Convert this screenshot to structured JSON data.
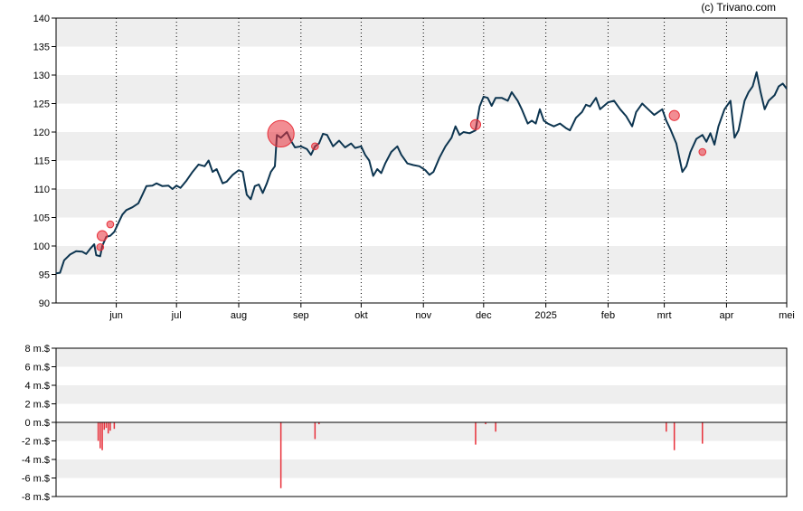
{
  "credit": "(c) Trivano.com",
  "chart_data": [
    {
      "type": "line",
      "ylim": [
        90,
        140
      ],
      "yticks": [
        90,
        95,
        100,
        105,
        110,
        115,
        120,
        125,
        130,
        135,
        140
      ],
      "xlim": [
        "2024-05-02",
        "2025-05-01"
      ],
      "month_ticks": [
        {
          "label": "jun",
          "date": "2024-06-01"
        },
        {
          "label": "jul",
          "date": "2024-07-01"
        },
        {
          "label": "aug",
          "date": "2024-08-01"
        },
        {
          "label": "sep",
          "date": "2024-09-01"
        },
        {
          "label": "okt",
          "date": "2024-10-01"
        },
        {
          "label": "nov",
          "date": "2024-11-01"
        },
        {
          "label": "dec",
          "date": "2024-12-01"
        },
        {
          "label": "2025",
          "date": "2025-01-01"
        },
        {
          "label": "feb",
          "date": "2025-02-01"
        },
        {
          "label": "mrt",
          "date": "2025-03-01"
        },
        {
          "label": "apr",
          "date": "2025-04-01"
        },
        {
          "label": "mei",
          "date": "2025-05-01"
        }
      ],
      "grid": "horizontal bands + dotted monthly verticals",
      "colors": {
        "line": "#0d3550",
        "band": "#eeeeee",
        "marker": "#e8303a"
      },
      "series": [
        {
          "points": [
            [
              "2024-05-02",
              95.2
            ],
            [
              "2024-05-04",
              95.3
            ],
            [
              "2024-05-06",
              97.5
            ],
            [
              "2024-05-09",
              98.5
            ],
            [
              "2024-05-12",
              99.1
            ],
            [
              "2024-05-15",
              99.0
            ],
            [
              "2024-05-17",
              98.6
            ],
            [
              "2024-05-19",
              99.5
            ],
            [
              "2024-05-21",
              100.3
            ],
            [
              "2024-05-22",
              98.4
            ],
            [
              "2024-05-24",
              98.2
            ],
            [
              "2024-05-25",
              100.0
            ],
            [
              "2024-05-27",
              101.6
            ],
            [
              "2024-05-29",
              101.8
            ],
            [
              "2024-05-31",
              102.5
            ],
            [
              "2024-06-02",
              104.0
            ],
            [
              "2024-06-04",
              105.5
            ],
            [
              "2024-06-06",
              106.3
            ],
            [
              "2024-06-09",
              106.8
            ],
            [
              "2024-06-12",
              107.5
            ],
            [
              "2024-06-14",
              109.0
            ],
            [
              "2024-06-16",
              110.5
            ],
            [
              "2024-06-19",
              110.6
            ],
            [
              "2024-06-21",
              111.0
            ],
            [
              "2024-06-24",
              110.5
            ],
            [
              "2024-06-27",
              110.6
            ],
            [
              "2024-06-29",
              110.0
            ],
            [
              "2024-07-01",
              110.6
            ],
            [
              "2024-07-03",
              110.2
            ],
            [
              "2024-07-06",
              111.5
            ],
            [
              "2024-07-09",
              113.0
            ],
            [
              "2024-07-12",
              114.3
            ],
            [
              "2024-07-15",
              114.0
            ],
            [
              "2024-07-17",
              115.0
            ],
            [
              "2024-07-19",
              113.0
            ],
            [
              "2024-07-21",
              113.5
            ],
            [
              "2024-07-24",
              111.0
            ],
            [
              "2024-07-26",
              111.3
            ],
            [
              "2024-07-29",
              112.5
            ],
            [
              "2024-08-01",
              113.3
            ],
            [
              "2024-08-03",
              113.0
            ],
            [
              "2024-08-05",
              109.0
            ],
            [
              "2024-08-07",
              108.2
            ],
            [
              "2024-08-09",
              110.5
            ],
            [
              "2024-08-11",
              110.8
            ],
            [
              "2024-08-13",
              109.3
            ],
            [
              "2024-08-15",
              111.0
            ],
            [
              "2024-08-17",
              113.0
            ],
            [
              "2024-08-19",
              114.0
            ],
            [
              "2024-08-20",
              119.5
            ],
            [
              "2024-08-22",
              119.0
            ],
            [
              "2024-08-25",
              120.0
            ],
            [
              "2024-08-27",
              118.5
            ],
            [
              "2024-08-29",
              117.3
            ],
            [
              "2024-09-01",
              117.5
            ],
            [
              "2024-09-04",
              117.0
            ],
            [
              "2024-09-06",
              116.0
            ],
            [
              "2024-09-08",
              117.5
            ],
            [
              "2024-09-10",
              118.0
            ],
            [
              "2024-09-12",
              119.7
            ],
            [
              "2024-09-14",
              119.5
            ],
            [
              "2024-09-17",
              117.5
            ],
            [
              "2024-09-20",
              118.5
            ],
            [
              "2024-09-23",
              117.3
            ],
            [
              "2024-09-26",
              118.0
            ],
            [
              "2024-09-28",
              117.2
            ],
            [
              "2024-10-01",
              117.5
            ],
            [
              "2024-10-03",
              116.0
            ],
            [
              "2024-10-05",
              115.0
            ],
            [
              "2024-10-07",
              112.3
            ],
            [
              "2024-10-09",
              113.5
            ],
            [
              "2024-10-11",
              112.8
            ],
            [
              "2024-10-13",
              114.5
            ],
            [
              "2024-10-16",
              116.5
            ],
            [
              "2024-10-19",
              117.5
            ],
            [
              "2024-10-21",
              116.0
            ],
            [
              "2024-10-24",
              114.5
            ],
            [
              "2024-10-27",
              114.2
            ],
            [
              "2024-10-30",
              114.0
            ],
            [
              "2024-11-02",
              113.3
            ],
            [
              "2024-11-04",
              112.5
            ],
            [
              "2024-11-06",
              113.0
            ],
            [
              "2024-11-09",
              115.5
            ],
            [
              "2024-11-12",
              117.5
            ],
            [
              "2024-11-15",
              119.0
            ],
            [
              "2024-11-17",
              121.0
            ],
            [
              "2024-11-19",
              119.5
            ],
            [
              "2024-11-21",
              120.0
            ],
            [
              "2024-11-24",
              119.8
            ],
            [
              "2024-11-27",
              120.3
            ],
            [
              "2024-11-29",
              124.5
            ],
            [
              "2024-12-01",
              126.2
            ],
            [
              "2024-12-03",
              126.0
            ],
            [
              "2024-12-05",
              124.6
            ],
            [
              "2024-12-07",
              126.0
            ],
            [
              "2024-12-10",
              126.0
            ],
            [
              "2024-12-13",
              125.5
            ],
            [
              "2024-12-15",
              127.0
            ],
            [
              "2024-12-18",
              125.5
            ],
            [
              "2024-12-20",
              124.0
            ],
            [
              "2024-12-23",
              121.5
            ],
            [
              "2024-12-25",
              122.0
            ],
            [
              "2024-12-27",
              121.5
            ],
            [
              "2024-12-29",
              124.0
            ],
            [
              "2024-12-31",
              122.0
            ],
            [
              "2025-01-02",
              121.5
            ],
            [
              "2025-01-05",
              121.0
            ],
            [
              "2025-01-08",
              121.5
            ],
            [
              "2025-01-11",
              120.7
            ],
            [
              "2025-01-13",
              120.3
            ],
            [
              "2025-01-16",
              122.5
            ],
            [
              "2025-01-19",
              123.5
            ],
            [
              "2025-01-21",
              124.8
            ],
            [
              "2025-01-23",
              124.5
            ],
            [
              "2025-01-26",
              126.0
            ],
            [
              "2025-01-28",
              124.0
            ],
            [
              "2025-02-01",
              125.2
            ],
            [
              "2025-02-04",
              125.5
            ],
            [
              "2025-02-07",
              124.0
            ],
            [
              "2025-02-10",
              122.8
            ],
            [
              "2025-02-13",
              121.0
            ],
            [
              "2025-02-15",
              123.5
            ],
            [
              "2025-02-18",
              125.0
            ],
            [
              "2025-02-21",
              124.0
            ],
            [
              "2025-02-24",
              123.0
            ],
            [
              "2025-02-26",
              123.5
            ],
            [
              "2025-02-28",
              124.0
            ],
            [
              "2025-03-02",
              122.0
            ],
            [
              "2025-03-04",
              120.5
            ],
            [
              "2025-03-07",
              118.0
            ],
            [
              "2025-03-10",
              113.0
            ],
            [
              "2025-03-12",
              114.0
            ],
            [
              "2025-03-14",
              116.5
            ],
            [
              "2025-03-17",
              118.8
            ],
            [
              "2025-03-20",
              119.5
            ],
            [
              "2025-03-22",
              118.3
            ],
            [
              "2025-03-24",
              119.8
            ],
            [
              "2025-03-26",
              117.8
            ],
            [
              "2025-03-28",
              121.0
            ],
            [
              "2025-03-31",
              124.0
            ],
            [
              "2025-04-03",
              125.5
            ],
            [
              "2025-04-05",
              119.0
            ],
            [
              "2025-04-07",
              120.3
            ],
            [
              "2025-04-10",
              125.5
            ],
            [
              "2025-04-12",
              127.0
            ],
            [
              "2025-04-14",
              128.0
            ],
            [
              "2025-04-16",
              130.5
            ],
            [
              "2025-04-18",
              127.0
            ],
            [
              "2025-04-20",
              124.0
            ],
            [
              "2025-04-22",
              125.5
            ],
            [
              "2025-04-25",
              126.5
            ],
            [
              "2025-04-27",
              128.0
            ],
            [
              "2025-04-29",
              128.5
            ],
            [
              "2025-05-01",
              127.6
            ]
          ]
        }
      ],
      "markers": [
        {
          "date": "2024-05-24",
          "value": 99.8,
          "size": 1
        },
        {
          "date": "2024-05-25",
          "value": 101.8,
          "size": 2
        },
        {
          "date": "2024-05-29",
          "value": 103.8,
          "size": 1
        },
        {
          "date": "2024-08-22",
          "value": 119.7,
          "size": 7
        },
        {
          "date": "2024-09-08",
          "value": 117.5,
          "size": 1
        },
        {
          "date": "2024-11-27",
          "value": 121.3,
          "size": 2
        },
        {
          "date": "2025-03-06",
          "value": 122.9,
          "size": 2
        },
        {
          "date": "2025-03-20",
          "value": 116.5,
          "size": 1
        }
      ]
    },
    {
      "type": "bar",
      "ylim": [
        -8,
        8
      ],
      "yticks": [
        -8,
        -6,
        -4,
        -2,
        0,
        2,
        4,
        6,
        8
      ],
      "ytick_labels": [
        "-8 m.$",
        "-6 m.$",
        "-4 m.$",
        "-2 m.$",
        "0 m.$",
        "2 m.$",
        "4 m.$",
        "6 m.$",
        "8 m.$"
      ],
      "colors": {
        "bar": "#e8303a",
        "zero_line": "#000000"
      },
      "bars": [
        [
          "2024-05-23",
          -2.0
        ],
        [
          "2024-05-24",
          -2.8
        ],
        [
          "2024-05-25",
          -3.0
        ],
        [
          "2024-05-26",
          -0.8
        ],
        [
          "2024-05-27",
          -0.6
        ],
        [
          "2024-05-28",
          -1.2
        ],
        [
          "2024-05-29",
          -0.9
        ],
        [
          "2024-05-31",
          -0.7
        ],
        [
          "2024-08-22",
          -7.1
        ],
        [
          "2024-09-08",
          -1.8
        ],
        [
          "2024-09-10",
          -0.2
        ],
        [
          "2024-11-27",
          -2.4
        ],
        [
          "2024-12-02",
          -0.2
        ],
        [
          "2024-12-07",
          -1.0
        ],
        [
          "2025-03-02",
          -1.0
        ],
        [
          "2025-03-06",
          -3.0
        ],
        [
          "2025-03-20",
          -2.3
        ]
      ]
    }
  ]
}
